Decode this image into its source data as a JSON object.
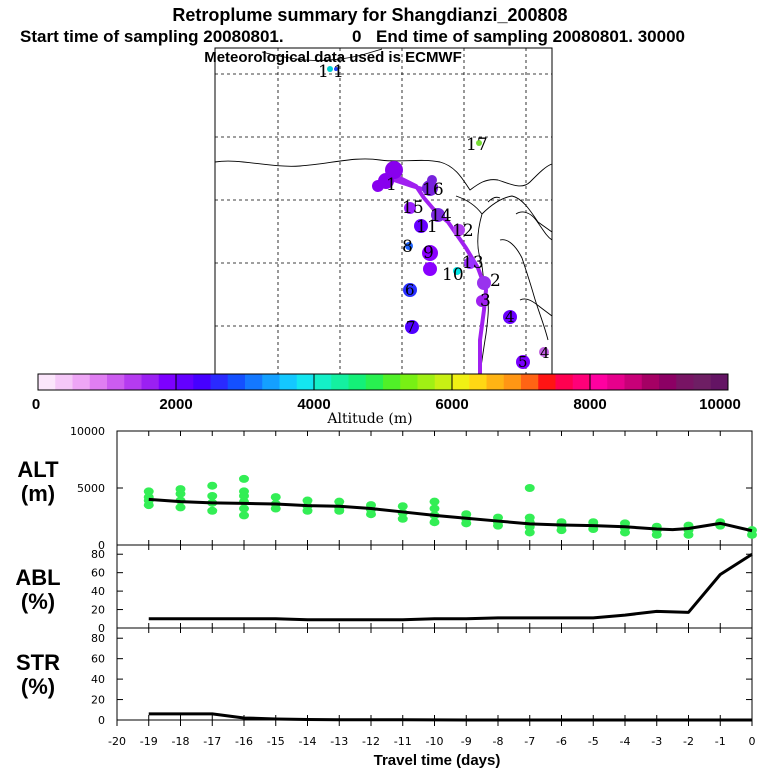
{
  "header": {
    "title": "Retroplume summary for Shangdianzi_200808",
    "sampling_start_label": "Start time of sampling 20080801.",
    "sampling_start_value": "0",
    "sampling_end_label": "End time of sampling 20080801. 30000",
    "met_data": "Meteorological data used is ECMWF"
  },
  "map": {
    "day_markers": [
      {
        "label": "1",
        "color": "#8800ee"
      },
      {
        "label": "2",
        "color": "#9933ee"
      },
      {
        "label": "3",
        "color": "#a020f0"
      },
      {
        "label": "4",
        "color": "#6a00ff"
      },
      {
        "label": "5",
        "color": "#7a00ff"
      },
      {
        "label": "6",
        "color": "#2a30ff"
      },
      {
        "label": "7",
        "color": "#5000ff"
      },
      {
        "label": "8",
        "color": "#1e64ff"
      },
      {
        "label": "9",
        "color": "#8a00ff"
      },
      {
        "label": "10",
        "color": "#00e5e5"
      },
      {
        "label": "11",
        "color": "#6600ff"
      },
      {
        "label": "12",
        "color": "#b040f0"
      },
      {
        "label": "13",
        "color": "#9a33ff"
      },
      {
        "label": "14",
        "color": "#7a2ae0"
      },
      {
        "label": "15",
        "color": "#9a20ff"
      },
      {
        "label": "16",
        "color": "#7722dd"
      },
      {
        "label": "17",
        "color": "#77dd33"
      },
      {
        "label": "1",
        "color": "#00d0d0"
      },
      {
        "label": "1",
        "color": "#2040ff"
      },
      {
        "label": "4",
        "color": "#c060e0"
      }
    ]
  },
  "colorbar": {
    "xlabel": "Altitude (m)",
    "ticks": [
      "0",
      "2000",
      "4000",
      "6000",
      "8000",
      "10000"
    ],
    "colors": [
      "#fbe6fb",
      "#f5c8f8",
      "#eea6f6",
      "#e07ef2",
      "#cc5cf0",
      "#b53bf0",
      "#9b20f2",
      "#7d00ff",
      "#6400ff",
      "#4600ff",
      "#2a2aff",
      "#1450ff",
      "#1478ff",
      "#14a0ff",
      "#14c8ff",
      "#14e6f0",
      "#14f0c8",
      "#14f0a0",
      "#14f078",
      "#28f050",
      "#50f028",
      "#78f014",
      "#a0f014",
      "#c8f014",
      "#f0f014",
      "#ffd714",
      "#ffb414",
      "#ff9614",
      "#ff6414",
      "#ff1414",
      "#ff0050",
      "#ff0078",
      "#ff00a0",
      "#e6008c",
      "#c80078",
      "#a50064",
      "#8c0064",
      "#781464",
      "#6e1e64",
      "#641464"
    ]
  },
  "chart_data": [
    {
      "type": "line",
      "panel": "ALT",
      "ylabel": "ALT (m)",
      "label_line1": "ALT",
      "label_line2": "(m)",
      "ylim": [
        0,
        10000
      ],
      "yticks": [
        "0",
        "5000",
        "10000"
      ],
      "xlim": [
        -20,
        0
      ],
      "x": [
        -19,
        -18,
        -17,
        -16,
        -15,
        -14,
        -13,
        -12,
        -11,
        -10,
        -9,
        -8,
        -7,
        -6,
        -5,
        -4,
        -3,
        -2.5,
        -2,
        -1,
        0
      ],
      "values": [
        4000,
        3800,
        3700,
        3650,
        3600,
        3450,
        3400,
        3200,
        2900,
        2600,
        2350,
        2100,
        1850,
        1750,
        1700,
        1600,
        1400,
        1350,
        1450,
        1900,
        1250
      ],
      "scatter_color": "#33ee55",
      "scatter": [
        [
          -19,
          3500
        ],
        [
          -19,
          4200
        ],
        [
          -19,
          4700
        ],
        [
          -19,
          3900
        ],
        [
          -18,
          3300
        ],
        [
          -18,
          3900
        ],
        [
          -18,
          4500
        ],
        [
          -18,
          4900
        ],
        [
          -17,
          3000
        ],
        [
          -17,
          3700
        ],
        [
          -17,
          4300
        ],
        [
          -17,
          5200
        ],
        [
          -16,
          3200
        ],
        [
          -16,
          3800
        ],
        [
          -16,
          4300
        ],
        [
          -16,
          4700
        ],
        [
          -16,
          5800
        ],
        [
          -16,
          2600
        ],
        [
          -15,
          3200
        ],
        [
          -15,
          3600
        ],
        [
          -15,
          4200
        ],
        [
          -14,
          3000
        ],
        [
          -14,
          3400
        ],
        [
          -14,
          3900
        ],
        [
          -13,
          3000
        ],
        [
          -13,
          3300
        ],
        [
          -13,
          3800
        ],
        [
          -12,
          2700
        ],
        [
          -12,
          3100
        ],
        [
          -12,
          3500
        ],
        [
          -11,
          2300
        ],
        [
          -11,
          2800
        ],
        [
          -11,
          3400
        ],
        [
          -10,
          2000
        ],
        [
          -10,
          2600
        ],
        [
          -10,
          3200
        ],
        [
          -10,
          3800
        ],
        [
          -9,
          1900
        ],
        [
          -9,
          2300
        ],
        [
          -9,
          2700
        ],
        [
          -8,
          1700
        ],
        [
          -8,
          2000
        ],
        [
          -8,
          2400
        ],
        [
          -7,
          1100
        ],
        [
          -7,
          1600
        ],
        [
          -7,
          2000
        ],
        [
          -7,
          2400
        ],
        [
          -7,
          5000
        ],
        [
          -6,
          1300
        ],
        [
          -6,
          1700
        ],
        [
          -6,
          2000
        ],
        [
          -5,
          1400
        ],
        [
          -5,
          1700
        ],
        [
          -5,
          2000
        ],
        [
          -4,
          1100
        ],
        [
          -4,
          1500
        ],
        [
          -4,
          1900
        ],
        [
          -3,
          900
        ],
        [
          -3,
          1300
        ],
        [
          -3,
          1600
        ],
        [
          -2,
          900
        ],
        [
          -2,
          1300
        ],
        [
          -2,
          1700
        ],
        [
          -1,
          1700
        ],
        [
          -1,
          2000
        ],
        [
          0,
          900
        ],
        [
          0,
          1300
        ]
      ]
    },
    {
      "type": "line",
      "panel": "ABL",
      "ylabel": "ABL (%)",
      "label_line1": "ABL",
      "label_line2": "(%)",
      "ylim": [
        0,
        90
      ],
      "yticks": [
        "0",
        "20",
        "40",
        "60",
        "80"
      ],
      "xlim": [
        -20,
        0
      ],
      "x": [
        -19,
        -18,
        -17,
        -16,
        -15,
        -14,
        -13,
        -12,
        -11,
        -10,
        -9,
        -8,
        -7,
        -6,
        -5,
        -4,
        -3,
        -2,
        -1,
        0
      ],
      "values": [
        10,
        10,
        10,
        10,
        10,
        9,
        9,
        9,
        9,
        10,
        10,
        11,
        11,
        11,
        11,
        14,
        18,
        17,
        58,
        80
      ]
    },
    {
      "type": "line",
      "panel": "STR",
      "ylabel": "STR (%)",
      "label_line1": "STR",
      "label_line2": "(%)",
      "ylim": [
        0,
        90
      ],
      "yticks": [
        "0",
        "20",
        "40",
        "60",
        "80"
      ],
      "xlim": [
        -20,
        0
      ],
      "x": [
        -19,
        -18,
        -17,
        -16,
        -15,
        -14,
        -13,
        -12,
        -11,
        -10,
        -9,
        -8,
        -7,
        -6,
        -5,
        -4,
        -3,
        -2,
        -1,
        0
      ],
      "values": [
        6,
        6,
        6,
        2,
        1,
        0.5,
        0.3,
        0.2,
        0.2,
        0.1,
        0,
        0,
        0,
        0,
        0,
        0,
        0,
        0,
        0,
        0
      ]
    }
  ],
  "x_axis": {
    "xlabel": "Travel time (days)",
    "ticks": [
      "-20",
      "-19",
      "-18",
      "-17",
      "-16",
      "-15",
      "-14",
      "-13",
      "-12",
      "-11",
      "-10",
      "-9",
      "-8",
      "-7",
      "-6",
      "-5",
      "-4",
      "-3",
      "-2",
      "-1",
      "0"
    ]
  }
}
